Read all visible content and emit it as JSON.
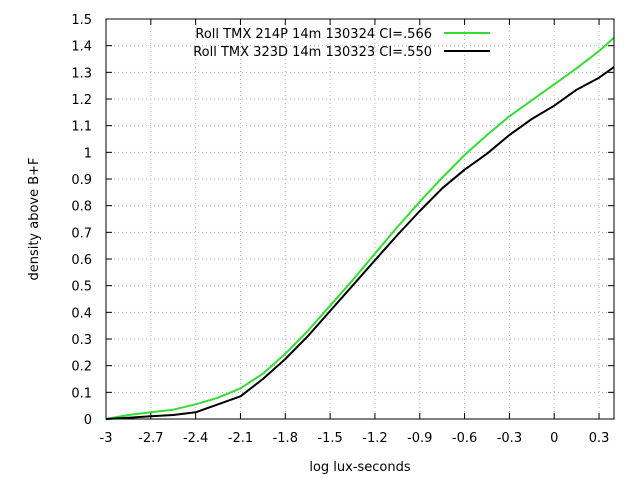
{
  "chart_data": {
    "type": "line",
    "title": "",
    "xlabel": "log lux-seconds",
    "ylabel": "density above B+F",
    "xlim": [
      -3,
      0.4
    ],
    "ylim": [
      0,
      1.5
    ],
    "grid": true,
    "legend_position": "top-right",
    "xticks": [
      -3,
      -2.7,
      -2.4,
      -2.1,
      -1.8,
      -1.5,
      -1.2,
      -0.9,
      -0.6,
      -0.3,
      0,
      0.3
    ],
    "xtick_labels": [
      "-3",
      "-2.7",
      "-2.4",
      "-2.1",
      "-1.8",
      "-1.5",
      "-1.2",
      "-0.9",
      "-0.6",
      "-0.3",
      "0",
      "0.3"
    ],
    "yticks": [
      0,
      0.1,
      0.2,
      0.3,
      0.4,
      0.5,
      0.6,
      0.7,
      0.8,
      0.9,
      1,
      1.1,
      1.2,
      1.3,
      1.4,
      1.5
    ],
    "ytick_labels": [
      "0",
      "0.1",
      "0.2",
      "0.3",
      "0.4",
      "0.5",
      "0.6",
      "0.7",
      "0.8",
      "0.9",
      "1",
      "1.1",
      "1.2",
      "1.3",
      "1.4",
      "1.5"
    ],
    "series": [
      {
        "name": "Roll TMX 214P 14m 130324 CI=.566",
        "color": "#33dd33",
        "x": [
          -3.0,
          -2.85,
          -2.7,
          -2.55,
          -2.4,
          -2.25,
          -2.1,
          -1.95,
          -1.8,
          -1.65,
          -1.5,
          -1.35,
          -1.2,
          -1.05,
          -0.9,
          -0.75,
          -0.6,
          -0.45,
          -0.3,
          -0.15,
          0.0,
          0.15,
          0.3,
          0.4
        ],
        "y": [
          0.0,
          0.015,
          0.025,
          0.035,
          0.055,
          0.08,
          0.115,
          0.17,
          0.245,
          0.33,
          0.425,
          0.52,
          0.62,
          0.72,
          0.815,
          0.905,
          0.99,
          1.065,
          1.135,
          1.195,
          1.255,
          1.315,
          1.38,
          1.43
        ]
      },
      {
        "name": "Roll TMX 323D 14m 130323 CI=.550",
        "color": "#000000",
        "x": [
          -3.0,
          -2.85,
          -2.7,
          -2.55,
          -2.4,
          -2.25,
          -2.1,
          -1.95,
          -1.8,
          -1.65,
          -1.5,
          -1.35,
          -1.2,
          -1.05,
          -0.9,
          -0.75,
          -0.6,
          -0.45,
          -0.3,
          -0.15,
          0.0,
          0.15,
          0.3,
          0.4
        ],
        "y": [
          0.0,
          0.005,
          0.01,
          0.015,
          0.025,
          0.055,
          0.085,
          0.15,
          0.225,
          0.31,
          0.405,
          0.5,
          0.595,
          0.69,
          0.78,
          0.865,
          0.935,
          0.995,
          1.065,
          1.125,
          1.175,
          1.235,
          1.28,
          1.32
        ]
      }
    ]
  }
}
